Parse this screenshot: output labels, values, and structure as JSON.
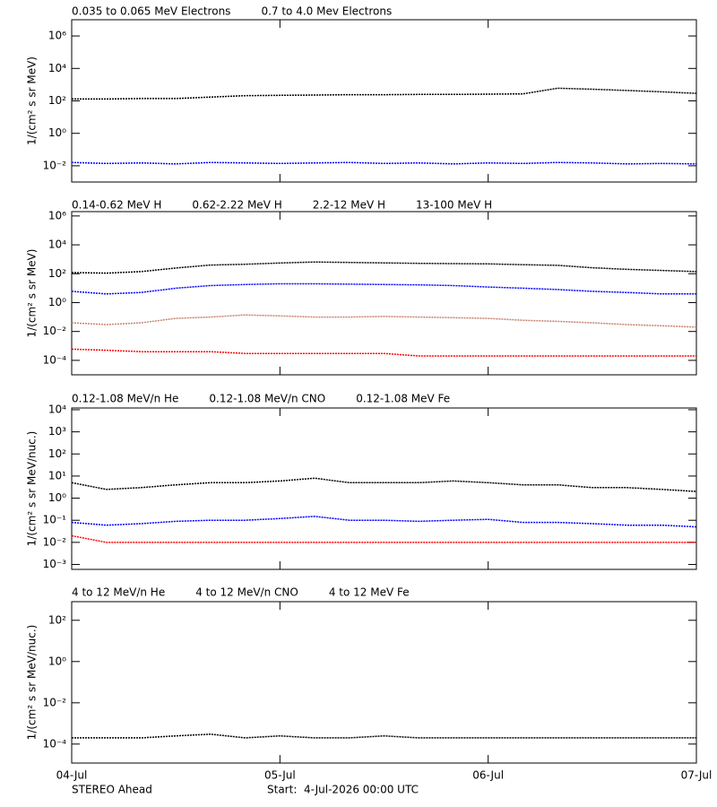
{
  "chart_data": [
    {
      "type": "line",
      "ylabel": "1/(cm² s sr MeV)",
      "log_y": true,
      "x": [
        0,
        4,
        8,
        12,
        16,
        20,
        24,
        28,
        32,
        36,
        40,
        44,
        48,
        52,
        56,
        60,
        64,
        68,
        72
      ],
      "xlim": [
        0,
        72
      ],
      "xticks": [
        0,
        24,
        48,
        72
      ],
      "ylim": [
        0.001,
        10000000
      ],
      "yticks": [
        {
          "value": 0.01,
          "label": "10⁻²"
        },
        {
          "value": 1,
          "label": "10⁰"
        },
        {
          "value": 100,
          "label": "10²"
        },
        {
          "value": 10000,
          "label": "10⁴"
        },
        {
          "value": 1000000,
          "label": "10⁶"
        }
      ],
      "series": [
        {
          "name": "0.035 to 0.065 MeV Electrons",
          "color": "#000000",
          "values": [
            130,
            130,
            140,
            140,
            170,
            210,
            220,
            230,
            240,
            240,
            250,
            250,
            260,
            270,
            600,
            520,
            440,
            360,
            290
          ]
        },
        {
          "name": "0.7 to 4.0 Mev Electrons",
          "color": "#0000ff",
          "values": [
            0.016,
            0.014,
            0.015,
            0.013,
            0.016,
            0.015,
            0.014,
            0.015,
            0.016,
            0.014,
            0.015,
            0.013,
            0.015,
            0.014,
            0.016,
            0.015,
            0.013,
            0.014,
            0.013
          ]
        }
      ]
    },
    {
      "type": "line",
      "ylabel": "1/(cm² s sr MeV)",
      "log_y": true,
      "x": [
        0,
        4,
        8,
        12,
        16,
        20,
        24,
        28,
        32,
        36,
        40,
        44,
        48,
        52,
        56,
        60,
        64,
        68,
        72
      ],
      "xlim": [
        0,
        72
      ],
      "xticks": [
        0,
        24,
        48,
        72
      ],
      "ylim": [
        1e-05,
        2000000
      ],
      "yticks": [
        {
          "value": 0.0001,
          "label": "10⁻⁴"
        },
        {
          "value": 0.01,
          "label": "10⁻²"
        },
        {
          "value": 1,
          "label": "10⁰"
        },
        {
          "value": 100,
          "label": "10²"
        },
        {
          "value": 10000,
          "label": "10⁴"
        },
        {
          "value": 1000000,
          "label": "10⁶"
        }
      ],
      "series": [
        {
          "name": "0.14-0.62 MeV H",
          "color": "#000000",
          "values": [
            120,
            110,
            140,
            250,
            400,
            450,
            550,
            650,
            600,
            560,
            520,
            500,
            480,
            420,
            380,
            260,
            200,
            170,
            140
          ]
        },
        {
          "name": "0.62-2.22 MeV H",
          "color": "#0000ff",
          "values": [
            6,
            4,
            5,
            10,
            15,
            18,
            20,
            20,
            19,
            18,
            17,
            15,
            12,
            10,
            8,
            6,
            5,
            4,
            4
          ]
        },
        {
          "name": "2.2-12 MeV H",
          "color": "#c8806a",
          "values": [
            0.04,
            0.03,
            0.04,
            0.08,
            0.1,
            0.14,
            0.12,
            0.1,
            0.1,
            0.11,
            0.1,
            0.09,
            0.08,
            0.06,
            0.05,
            0.04,
            0.03,
            0.025,
            0.02
          ]
        },
        {
          "name": "13-100 MeV H",
          "color": "#ff0000",
          "values": [
            0.0006,
            0.0005,
            0.0004,
            0.0004,
            0.0004,
            0.0003,
            0.0003,
            0.0003,
            0.0003,
            0.0003,
            0.0002,
            0.0002,
            0.0002,
            0.0002,
            0.0002,
            0.0002,
            0.0002,
            0.0002,
            0.0002
          ]
        }
      ]
    },
    {
      "type": "line",
      "ylabel": "1/(cm² s sr MeV/nuc.)",
      "log_y": true,
      "x": [
        0,
        4,
        8,
        12,
        16,
        20,
        24,
        28,
        32,
        36,
        40,
        44,
        48,
        52,
        56,
        60,
        64,
        68,
        72
      ],
      "xlim": [
        0,
        72
      ],
      "xticks": [
        0,
        24,
        48,
        72
      ],
      "ylim": [
        0.0006,
        12000
      ],
      "yticks": [
        {
          "value": 0.001,
          "label": "10⁻³"
        },
        {
          "value": 0.01,
          "label": "10⁻²"
        },
        {
          "value": 0.1,
          "label": "10⁻¹"
        },
        {
          "value": 1,
          "label": "10⁰"
        },
        {
          "value": 10,
          "label": "10¹"
        },
        {
          "value": 100,
          "label": "10²"
        },
        {
          "value": 1000,
          "label": "10³"
        },
        {
          "value": 10000,
          "label": "10⁴"
        }
      ],
      "series": [
        {
          "name": "0.12-1.08 MeV/n He",
          "color": "#000000",
          "values": [
            5,
            2.5,
            3,
            4,
            5,
            5,
            6,
            8,
            5,
            5,
            5,
            6,
            5,
            4,
            4,
            3,
            3,
            2.5,
            2
          ]
        },
        {
          "name": "0.12-1.08 MeV/n CNO",
          "color": "#0000ff",
          "values": [
            0.08,
            0.06,
            0.07,
            0.09,
            0.1,
            0.1,
            0.12,
            0.15,
            0.1,
            0.1,
            0.09,
            0.1,
            0.11,
            0.08,
            0.08,
            0.07,
            0.06,
            0.06,
            0.05
          ]
        },
        {
          "name": "0.12-1.08 MeV Fe",
          "color": "#ff0000",
          "values": [
            0.02,
            0.01,
            0.01,
            0.01,
            0.01,
            0.01,
            0.01,
            0.01,
            0.01,
            0.01,
            0.01,
            0.01,
            0.01,
            0.01,
            0.01,
            0.01,
            0.01,
            0.01,
            0.01
          ]
        }
      ]
    },
    {
      "type": "line",
      "ylabel": "1/(cm² s sr MeV/nuc.)",
      "log_y": true,
      "x": [
        0,
        4,
        8,
        12,
        16,
        20,
        24,
        28,
        32,
        36,
        40,
        44,
        48,
        52,
        56,
        60,
        64,
        68,
        72
      ],
      "xlim": [
        0,
        72
      ],
      "xticks": [
        {
          "value": 0,
          "label": "04-Jul"
        },
        {
          "value": 24,
          "label": "05-Jul"
        },
        {
          "value": 48,
          "label": "06-Jul"
        },
        {
          "value": 72,
          "label": "07-Jul"
        }
      ],
      "ylim": [
        1.2e-05,
        800
      ],
      "yticks": [
        {
          "value": 0.0001,
          "label": "10⁻⁴"
        },
        {
          "value": 0.01,
          "label": "10⁻²"
        },
        {
          "value": 1,
          "label": "10⁰"
        },
        {
          "value": 100,
          "label": "10²"
        }
      ],
      "series": [
        {
          "name": "4 to 12 MeV/n He",
          "color": "#000000",
          "values": [
            0.0002,
            0.0002,
            0.0002,
            0.00025,
            0.0003,
            0.0002,
            0.00025,
            0.0002,
            0.0002,
            0.00025,
            0.0002,
            0.0002,
            0.0002,
            0.0002,
            0.0002,
            0.0002,
            0.0002,
            0.0002,
            0.0002
          ]
        },
        {
          "name": "4 to 12 MeV/n CNO",
          "color": "#0000ff",
          "values": [
            null,
            null,
            null,
            null,
            null,
            null,
            null,
            null,
            null,
            null,
            null,
            null,
            null,
            null,
            null,
            null,
            null,
            null,
            null
          ]
        },
        {
          "name": "4 to 12 MeV Fe",
          "color": "#ff0000",
          "values": [
            null,
            null,
            null,
            null,
            null,
            null,
            null,
            null,
            null,
            null,
            null,
            null,
            null,
            null,
            null,
            null,
            null,
            null,
            null
          ]
        }
      ]
    }
  ],
  "footer": {
    "left": "STEREO Ahead",
    "right": "Start:  4-Jul-2026 00:00 UTC"
  }
}
